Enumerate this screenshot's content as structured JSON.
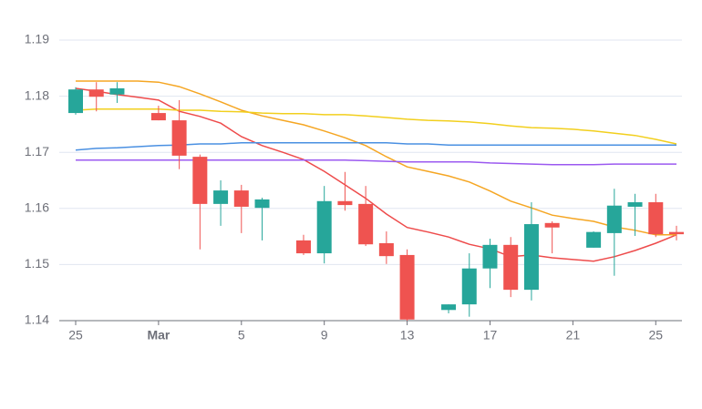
{
  "chart_data": {
    "type": "candlestick",
    "categories": [
      "25",
      null,
      null,
      null,
      "Mar",
      null,
      null,
      null,
      "5",
      null,
      null,
      null,
      "9",
      null,
      null,
      null,
      "13",
      null,
      null,
      null,
      "17",
      null,
      null,
      null,
      "21",
      null,
      null,
      null,
      "25",
      null
    ],
    "open": [
      1.177,
      1.1812,
      1.1803,
      null,
      1.177,
      1.1757,
      1.1692,
      1.1608,
      1.1632,
      1.1601,
      null,
      1.1543,
      1.152,
      1.1613,
      1.1608,
      1.1538,
      1.1517,
      null,
      1.1419,
      1.1429,
      1.1493,
      1.1535,
      1.1455,
      1.1574,
      null,
      1.153,
      1.1556,
      1.1603,
      1.1611,
      1.1558
    ],
    "high": [
      1.1816,
      1.1825,
      1.1825,
      null,
      1.1783,
      1.1793,
      1.1696,
      1.165,
      1.1642,
      1.1619,
      null,
      1.1553,
      1.164,
      1.1665,
      1.164,
      1.1559,
      1.1527,
      null,
      1.1429,
      1.152,
      1.1546,
      1.1549,
      1.1611,
      1.1577,
      null,
      1.1559,
      1.1635,
      1.1626,
      1.1626,
      1.1569
    ],
    "low": [
      1.1767,
      1.1773,
      1.1788,
      null,
      1.1757,
      1.167,
      1.1527,
      1.1569,
      1.1556,
      1.1543,
      null,
      1.1517,
      1.1502,
      1.1596,
      1.1533,
      1.1501,
      1.14,
      null,
      1.1413,
      1.1407,
      1.1458,
      1.1442,
      1.1436,
      1.152,
      null,
      1.153,
      1.148,
      1.1551,
      1.1549,
      1.1543
    ],
    "close": [
      1.1812,
      1.1799,
      1.1814,
      null,
      1.1757,
      1.1694,
      1.1608,
      1.1632,
      1.1603,
      1.1616,
      null,
      1.152,
      1.1613,
      1.1606,
      1.1536,
      1.1515,
      1.1402,
      null,
      1.1429,
      1.1493,
      1.1535,
      1.1455,
      1.1572,
      1.1566,
      null,
      1.1558,
      1.1605,
      1.1611,
      1.1554,
      1.1554
    ],
    "up_color": "#26a69a",
    "down_color": "#ef5350",
    "series": [
      {
        "color": "#ee4b4b",
        "values": [
          1.1814,
          1.1809,
          1.1803,
          1.1798,
          1.1793,
          1.1773,
          1.1764,
          1.1752,
          1.1728,
          1.1712,
          1.17,
          1.1687,
          1.1666,
          1.1642,
          1.1618,
          1.159,
          1.1566,
          1.1558,
          1.1549,
          1.1536,
          1.1528,
          1.1514,
          1.1517,
          1.1512,
          1.1509,
          1.1506,
          1.1514,
          1.1525,
          1.1538,
          1.1553
        ]
      },
      {
        "color": "#f5a623",
        "values": [
          1.1827,
          1.1827,
          1.1827,
          1.1827,
          1.1825,
          1.1817,
          1.1804,
          1.179,
          1.1775,
          1.1765,
          1.1757,
          1.1749,
          1.1738,
          1.1726,
          1.1712,
          1.1692,
          1.1674,
          1.1666,
          1.1658,
          1.1647,
          1.1631,
          1.1613,
          1.1601,
          1.1588,
          1.1582,
          1.1577,
          1.1567,
          1.1561,
          1.1553,
          1.1553
        ]
      },
      {
        "color": "#f2cf1d",
        "values": [
          1.1775,
          1.1777,
          1.1777,
          1.1777,
          1.1777,
          1.1775,
          1.1775,
          1.1773,
          1.1772,
          1.177,
          1.1769,
          1.1769,
          1.1767,
          1.1767,
          1.1765,
          1.1762,
          1.1759,
          1.1757,
          1.1756,
          1.1754,
          1.1751,
          1.1747,
          1.1744,
          1.1743,
          1.1741,
          1.1738,
          1.1734,
          1.173,
          1.1723,
          1.1715
        ]
      },
      {
        "color": "#4a90e2",
        "values": [
          1.1704,
          1.1707,
          1.1708,
          1.171,
          1.1712,
          1.1713,
          1.1715,
          1.1715,
          1.1717,
          1.1717,
          1.1717,
          1.1717,
          1.1717,
          1.1717,
          1.1717,
          1.1717,
          1.1715,
          1.1715,
          1.1713,
          1.1713,
          1.1713,
          1.1713,
          1.1713,
          1.1713,
          1.1713,
          1.1713,
          1.1713,
          1.1713,
          1.1713,
          1.1713
        ]
      },
      {
        "color": "#9b59f0",
        "values": [
          1.1686,
          1.1686,
          1.1686,
          1.1686,
          1.1686,
          1.1686,
          1.1686,
          1.1686,
          1.1686,
          1.1686,
          1.1686,
          1.1686,
          1.1686,
          1.1686,
          1.1685,
          1.1684,
          1.1683,
          1.1683,
          1.1683,
          1.1683,
          1.1681,
          1.168,
          1.1679,
          1.1678,
          1.1678,
          1.1678,
          1.1679,
          1.1679,
          1.1679,
          1.1679
        ]
      }
    ],
    "ylim": [
      1.14,
      1.19
    ],
    "yticks": [
      1.14,
      1.15,
      1.16,
      1.17,
      1.18,
      1.19
    ],
    "grid": true
  }
}
